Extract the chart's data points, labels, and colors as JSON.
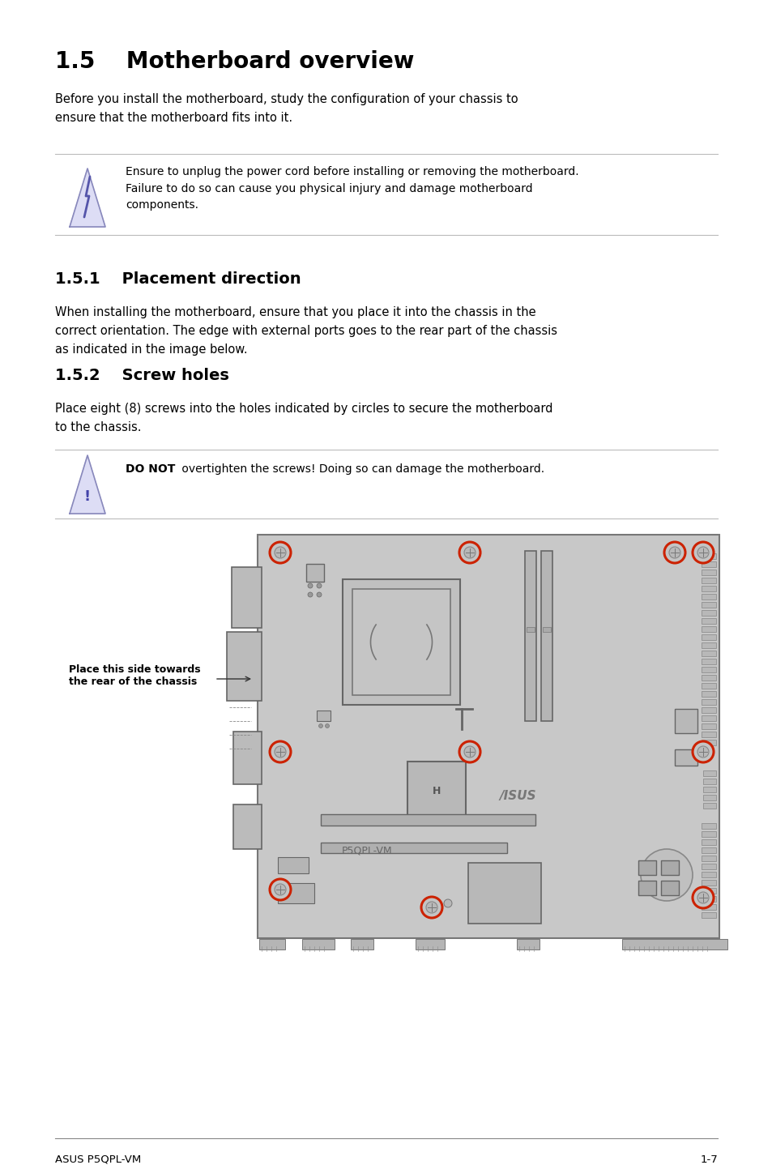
{
  "title": "1.5    Motherboard overview",
  "intro_text": "Before you install the motherboard, study the configuration of your chassis to\nensure that the motherboard fits into it.",
  "warning1_text": "Ensure to unplug the power cord before installing or removing the motherboard.\nFailure to do so can cause you physical injury and damage motherboard\ncomponents.",
  "section151": "1.5.1    Placement direction",
  "section151_text": "When installing the motherboard, ensure that you place it into the chassis in the\ncorrect orientation. The edge with external ports goes to the rear part of the chassis\nas indicated in the image below.",
  "section152": "1.5.2    Screw holes",
  "section152_text": "Place eight (8) screws into the holes indicated by circles to secure the motherboard\nto the chassis.",
  "warning2_text_bold": "DO NOT",
  "warning2_text_rest": " overtighten the screws! Doing so can damage the motherboard.",
  "annotation_text": "Place this side towards\nthe rear of the chassis",
  "footer_left": "ASUS P5QPL-VM",
  "footer_right": "1-7",
  "bg_color": "#ffffff",
  "text_color": "#000000",
  "board_color": "#c8c8c8",
  "board_border_color": "#777777",
  "screw_color": "#cc2200",
  "line_color": "#bbbbbb"
}
